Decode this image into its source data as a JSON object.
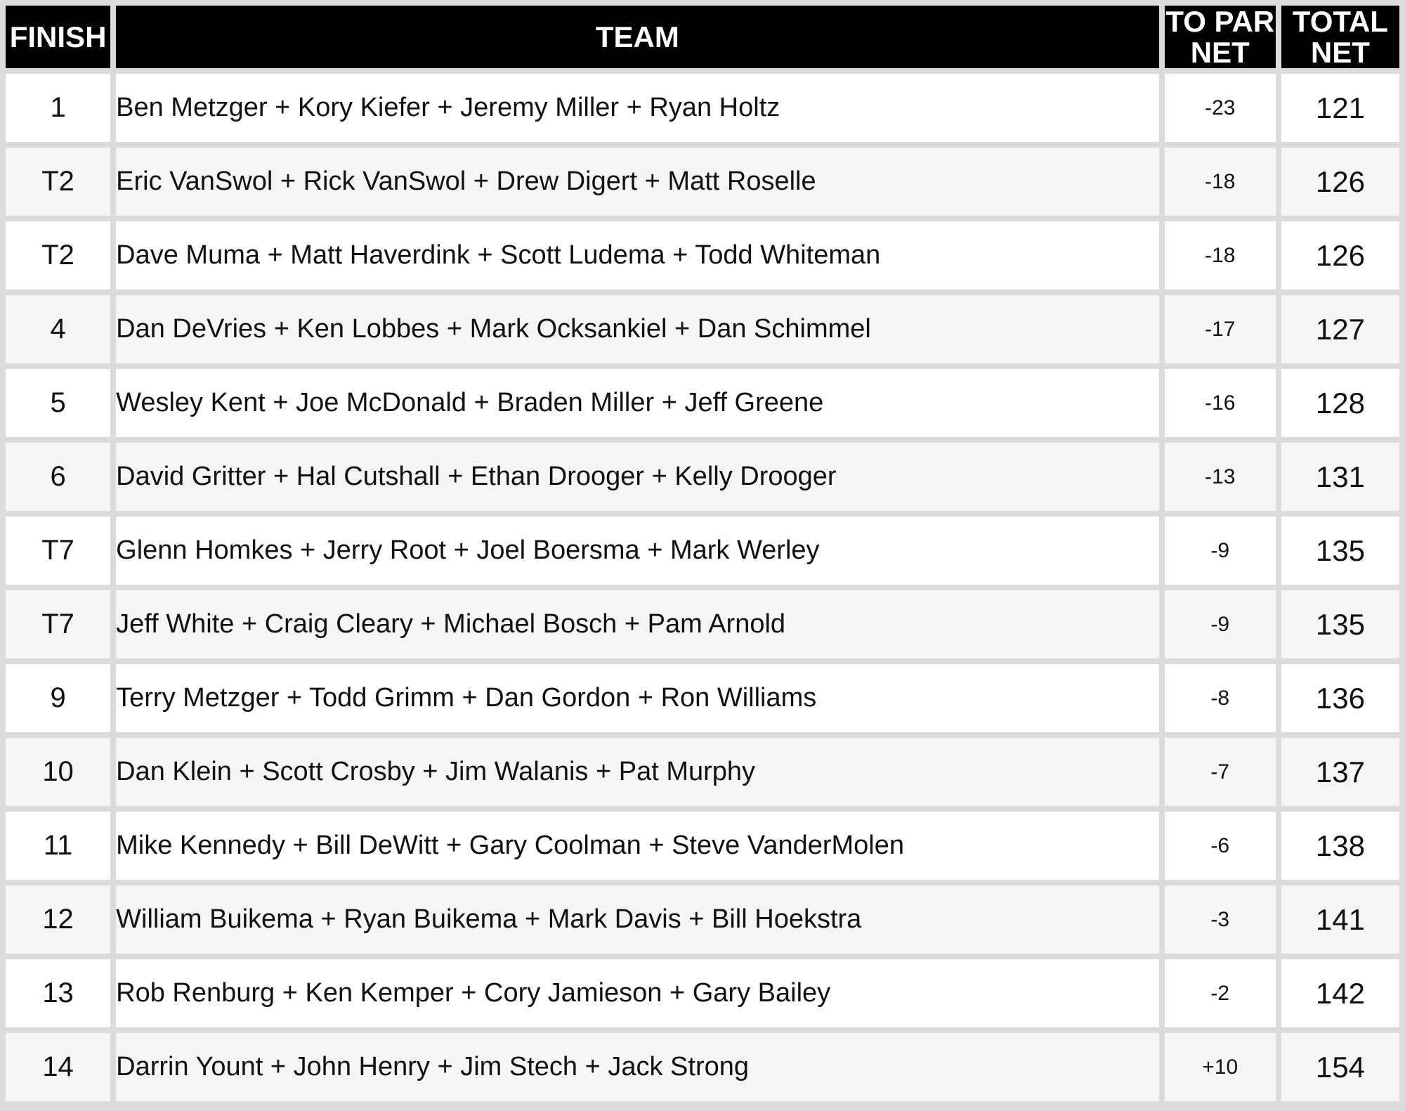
{
  "colors": {
    "header_bg": "#000000",
    "header_fg": "#ffffff",
    "row_bg": "#ffffff",
    "row_alt_bg": "#f5f5f5",
    "border": "#dbdbdb",
    "text": "#111111"
  },
  "chart_data": {
    "type": "table",
    "columns": {
      "finish": "FINISH",
      "team": "TEAM",
      "to_par_net": "TO PAR NET",
      "total_net": "TOTAL NET"
    },
    "rows": [
      {
        "finish": "1",
        "team": "Ben Metzger + Kory Kiefer + Jeremy Miller + Ryan Holtz",
        "to_par_net": "-23",
        "total_net": "121"
      },
      {
        "finish": "T2",
        "team": "Eric VanSwol + Rick VanSwol + Drew Digert + Matt Roselle",
        "to_par_net": "-18",
        "total_net": "126"
      },
      {
        "finish": "T2",
        "team": "Dave Muma + Matt Haverdink + Scott Ludema + Todd Whiteman",
        "to_par_net": "-18",
        "total_net": "126"
      },
      {
        "finish": "4",
        "team": "Dan DeVries + Ken Lobbes + Mark Ocksankiel + Dan Schimmel",
        "to_par_net": "-17",
        "total_net": "127"
      },
      {
        "finish": "5",
        "team": "Wesley Kent + Joe McDonald + Braden Miller + Jeff Greene",
        "to_par_net": "-16",
        "total_net": "128"
      },
      {
        "finish": "6",
        "team": "David Gritter + Hal Cutshall + Ethan Drooger + Kelly Drooger",
        "to_par_net": "-13",
        "total_net": "131"
      },
      {
        "finish": "T7",
        "team": "Glenn Homkes + Jerry Root + Joel Boersma + Mark Werley",
        "to_par_net": "-9",
        "total_net": "135"
      },
      {
        "finish": "T7",
        "team": "Jeff White + Craig Cleary + Michael Bosch + Pam Arnold",
        "to_par_net": "-9",
        "total_net": "135"
      },
      {
        "finish": "9",
        "team": "Terry Metzger + Todd Grimm + Dan Gordon + Ron Williams",
        "to_par_net": "-8",
        "total_net": "136"
      },
      {
        "finish": "10",
        "team": "Dan Klein + Scott Crosby + Jim Walanis + Pat Murphy",
        "to_par_net": "-7",
        "total_net": "137"
      },
      {
        "finish": "11",
        "team": "Mike Kennedy + Bill DeWitt + Gary Coolman + Steve VanderMolen",
        "to_par_net": "-6",
        "total_net": "138"
      },
      {
        "finish": "12",
        "team": "William Buikema + Ryan Buikema + Mark Davis + Bill Hoekstra",
        "to_par_net": "-3",
        "total_net": "141"
      },
      {
        "finish": "13",
        "team": "Rob Renburg + Ken Kemper + Cory Jamieson + Gary Bailey",
        "to_par_net": "-2",
        "total_net": "142"
      },
      {
        "finish": "14",
        "team": "Darrin Yount + John Henry + Jim Stech + Jack Strong",
        "to_par_net": "+10",
        "total_net": "154"
      }
    ]
  }
}
